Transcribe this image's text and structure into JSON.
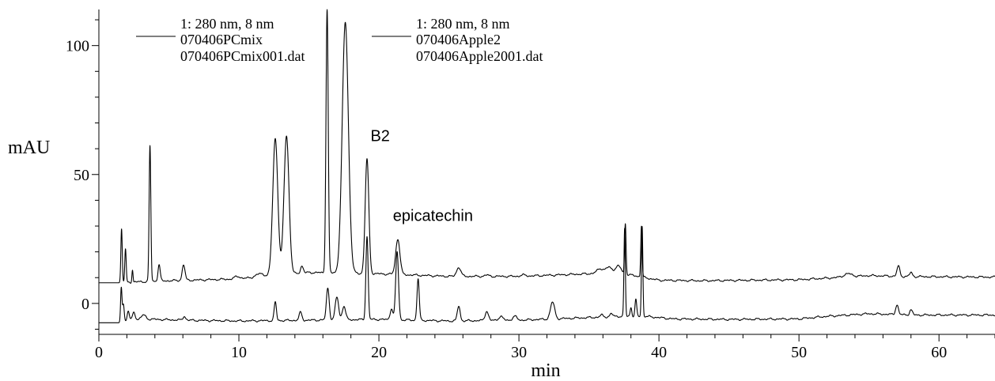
{
  "chart_data": {
    "type": "line",
    "xlabel": "min",
    "ylabel": "mAU",
    "xlim": [
      0,
      64
    ],
    "ylim": [
      -12,
      114
    ],
    "x_ticks": [
      0,
      10,
      20,
      30,
      40,
      50,
      60
    ],
    "y_ticks": [
      0,
      50,
      100
    ],
    "grid": false,
    "legend_position": "top-left",
    "colors": {
      "line": "#000000",
      "axis": "#000000",
      "background": "#ffffff"
    },
    "legend": [
      {
        "line1": "1: 280 nm, 8 nm",
        "line2": "070406PCmix",
        "line3": "070406PCmix001.dat"
      },
      {
        "line1": "1: 280 nm, 8 nm",
        "line2": "070406Apple2",
        "line3": "070406Apple2001.dat"
      }
    ],
    "annotations": [
      {
        "text": "B2",
        "x": 19.4,
        "y": 63
      },
      {
        "text": "epicatechin",
        "x": 21.0,
        "y": 32
      }
    ],
    "series": [
      {
        "name": "070406PCmix",
        "baseline": [
          [
            0,
            8
          ],
          [
            1.5,
            8
          ],
          [
            2.5,
            8.3
          ],
          [
            5,
            8.8
          ],
          [
            10,
            9.5
          ],
          [
            12,
            10.5
          ],
          [
            15,
            12
          ],
          [
            20,
            11.5
          ],
          [
            25,
            10.5
          ],
          [
            30,
            10.5
          ],
          [
            35,
            11.5
          ],
          [
            36.5,
            12.5
          ],
          [
            38,
            11
          ],
          [
            40,
            9
          ],
          [
            43,
            8.8
          ],
          [
            50,
            9.2
          ],
          [
            52,
            9.8
          ],
          [
            55,
            10.8
          ],
          [
            58,
            10.4
          ],
          [
            64,
            10.2
          ]
        ],
        "peaks": [
          [
            1.62,
            29,
            0.05
          ],
          [
            1.9,
            21,
            0.05
          ],
          [
            2.4,
            13,
            0.04
          ],
          [
            3.65,
            61,
            0.06
          ],
          [
            4.3,
            15,
            0.08
          ],
          [
            6.05,
            15,
            0.1
          ],
          [
            9.9,
            10.5,
            0.2
          ],
          [
            11.5,
            11.5,
            0.3
          ],
          [
            12.6,
            64,
            0.18
          ],
          [
            13.4,
            65,
            0.18
          ],
          [
            14.5,
            14.5,
            0.1
          ],
          [
            16.3,
            114,
            0.08
          ],
          [
            17.6,
            109,
            0.22
          ],
          [
            19.15,
            56,
            0.13
          ],
          [
            21.35,
            25,
            0.15
          ],
          [
            25.7,
            14,
            0.15
          ],
          [
            27.7,
            11,
            0.15
          ],
          [
            30.3,
            11,
            0.2
          ],
          [
            35.8,
            13.5,
            0.2
          ],
          [
            36.4,
            14,
            0.2
          ],
          [
            37.1,
            14.5,
            0.2
          ],
          [
            37.6,
            31,
            0.05
          ],
          [
            38.75,
            30,
            0.05
          ],
          [
            53.5,
            11.5,
            0.3
          ],
          [
            57.1,
            14.5,
            0.1
          ],
          [
            58.0,
            12,
            0.1
          ]
        ]
      },
      {
        "name": "070406Apple2",
        "baseline": [
          [
            0,
            -7.5
          ],
          [
            1.5,
            -7.5
          ],
          [
            3,
            -6
          ],
          [
            6,
            -6.5
          ],
          [
            10,
            -6.8
          ],
          [
            15,
            -6.5
          ],
          [
            20,
            -6.2
          ],
          [
            25,
            -6.8
          ],
          [
            30,
            -6.5
          ],
          [
            35,
            -5.5
          ],
          [
            37,
            -5
          ],
          [
            39,
            -5
          ],
          [
            41,
            -6
          ],
          [
            45,
            -6.2
          ],
          [
            50,
            -6
          ],
          [
            52,
            -5
          ],
          [
            55,
            -4
          ],
          [
            58,
            -4.5
          ],
          [
            64,
            -4.5
          ]
        ],
        "peaks": [
          [
            1.6,
            6,
            0.05
          ],
          [
            1.75,
            0,
            0.06
          ],
          [
            2.1,
            -3,
            0.08
          ],
          [
            2.5,
            -3.5,
            0.1
          ],
          [
            3.2,
            -4.5,
            0.15
          ],
          [
            6.1,
            -5,
            0.1
          ],
          [
            12.6,
            0.5,
            0.08
          ],
          [
            14.4,
            -3.5,
            0.1
          ],
          [
            16.35,
            6,
            0.1
          ],
          [
            17.0,
            2.5,
            0.12
          ],
          [
            17.5,
            -1,
            0.12
          ],
          [
            19.15,
            26,
            0.08
          ],
          [
            20.9,
            -2,
            0.1
          ],
          [
            21.3,
            20,
            0.1
          ],
          [
            22.8,
            9.5,
            0.08
          ],
          [
            25.7,
            -1,
            0.1
          ],
          [
            27.7,
            -3,
            0.12
          ],
          [
            28.7,
            -5,
            0.15
          ],
          [
            29.7,
            -5,
            0.15
          ],
          [
            32.4,
            0.5,
            0.15
          ],
          [
            35.9,
            -4.5,
            0.1
          ],
          [
            36.6,
            -4,
            0.1
          ],
          [
            37.55,
            29,
            0.05
          ],
          [
            38.0,
            -1.5,
            0.06
          ],
          [
            38.35,
            1.5,
            0.06
          ],
          [
            38.8,
            30,
            0.05
          ],
          [
            57.0,
            -0.5,
            0.1
          ],
          [
            58.0,
            -2.5,
            0.1
          ]
        ]
      }
    ]
  }
}
